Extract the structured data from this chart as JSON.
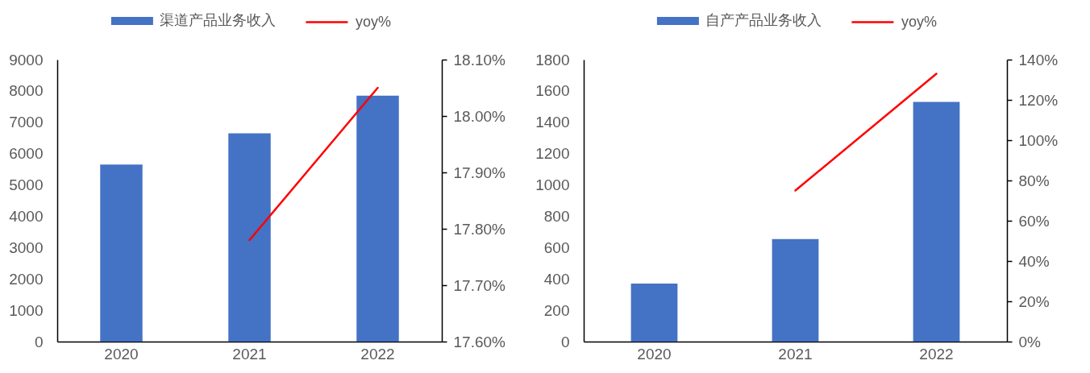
{
  "chart_data": [
    {
      "type": "bar",
      "categories": [
        "2020",
        "2021",
        "2022"
      ],
      "series": [
        {
          "name": "渠道产品业务收入",
          "color": "#4472c4",
          "values": [
            5650,
            6650,
            7850
          ]
        },
        {
          "name": "yoy%",
          "type": "line",
          "axis": "y2",
          "color": "#ff0000",
          "values": [
            null,
            17.78,
            18.05
          ]
        }
      ],
      "ylim": [
        0,
        9000
      ],
      "yticks": [
        0,
        1000,
        2000,
        3000,
        4000,
        5000,
        6000,
        7000,
        8000,
        9000
      ],
      "y2lim": [
        17.6,
        18.1
      ],
      "y2ticks": [
        {
          "value": 17.6,
          "label": "17.60%"
        },
        {
          "value": 17.7,
          "label": "17.70%"
        },
        {
          "value": 17.8,
          "label": "17.80%"
        },
        {
          "value": 17.9,
          "label": "17.90%"
        },
        {
          "value": 18.0,
          "label": "18.00%"
        },
        {
          "value": 18.1,
          "label": "18.10%"
        }
      ],
      "grid": false,
      "legend": "top"
    },
    {
      "type": "bar",
      "categories": [
        "2020",
        "2021",
        "2022"
      ],
      "series": [
        {
          "name": "自产产品业务收入",
          "color": "#4472c4",
          "values": [
            370,
            655,
            1530
          ]
        },
        {
          "name": "yoy%",
          "type": "line",
          "axis": "y2",
          "color": "#ff0000",
          "values": [
            null,
            75,
            133
          ]
        }
      ],
      "ylim": [
        0,
        1800
      ],
      "yticks": [
        0,
        200,
        400,
        600,
        800,
        1000,
        1200,
        1400,
        1600,
        1800
      ],
      "y2lim": [
        0,
        140
      ],
      "y2ticks": [
        {
          "value": 0,
          "label": "0%"
        },
        {
          "value": 20,
          "label": "20%"
        },
        {
          "value": 40,
          "label": "40%"
        },
        {
          "value": 60,
          "label": "60%"
        },
        {
          "value": 80,
          "label": "80%"
        },
        {
          "value": 100,
          "label": "100%"
        },
        {
          "value": 120,
          "label": "120%"
        },
        {
          "value": 140,
          "label": "140%"
        }
      ],
      "grid": false,
      "legend": "top"
    }
  ]
}
